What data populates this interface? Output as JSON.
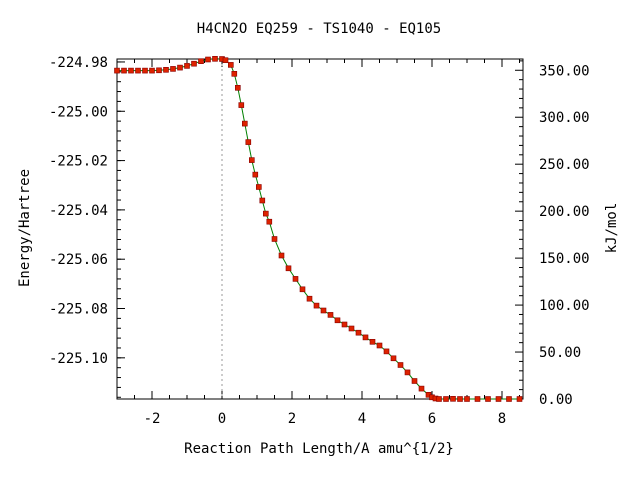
{
  "chart_data": {
    "type": "line",
    "title": "H4CN2O   EQ259 - TS1040 - EQ105",
    "xlabel": "Reaction Path Length/A amu^{1/2}",
    "ylabel_left": "Energy/Hartree",
    "ylabel_right": "kJ/mol",
    "xlim": [
      -3.0,
      8.6
    ],
    "ylim_left": [
      -225.1167,
      -224.9788
    ],
    "ylim_right": [
      0,
      362
    ],
    "x_ticks": [
      -2,
      0,
      2,
      4,
      6,
      8
    ],
    "x_tick_labels": [
      "-2",
      "0",
      "2",
      "4",
      "6",
      "8"
    ],
    "y_left_ticks": [
      -224.98,
      -225.0,
      -225.02,
      -225.04,
      -225.06,
      -225.08,
      -225.1
    ],
    "y_left_tick_labels": [
      "-224.98",
      "-225.00",
      "-225.02",
      "-225.04",
      "-225.06",
      "-225.08",
      "-225.10"
    ],
    "y_right_ticks": [
      0,
      50,
      100,
      150,
      200,
      250,
      300,
      350
    ],
    "y_right_tick_labels": [
      "0.00",
      "50.00",
      "100.00",
      "150.00",
      "200.00",
      "250.00",
      "300.00",
      "350.00"
    ],
    "ts_marker_x": 0.0,
    "grid": false,
    "line_color": "#008000",
    "point_color": "#dd2200",
    "guide_color": "#999999",
    "series": [
      {
        "x": [
          -3.0,
          -2.8,
          -2.6,
          -2.4,
          -2.2,
          -2.0,
          -1.8,
          -1.6,
          -1.4,
          -1.2,
          -1.0,
          -0.8,
          -0.6,
          -0.4,
          -0.2,
          0.0,
          0.1,
          0.25,
          0.35,
          0.45,
          0.55,
          0.65,
          0.75,
          0.85,
          0.95,
          1.05,
          1.15,
          1.25,
          1.35,
          1.5,
          1.7,
          1.9,
          2.1,
          2.3,
          2.5,
          2.7,
          2.9,
          3.1,
          3.3,
          3.5,
          3.7,
          3.9,
          4.1,
          4.3,
          4.5,
          4.7,
          4.9,
          5.1,
          5.3,
          5.5,
          5.7,
          5.9,
          6.0,
          6.1,
          6.2,
          6.4,
          6.6,
          6.8,
          7.0,
          7.3,
          7.6,
          7.9,
          8.2,
          8.5
        ],
        "y": [
          -224.9835,
          -224.9835,
          -224.9835,
          -224.9835,
          -224.9835,
          -224.9835,
          -224.9834,
          -224.9832,
          -224.9828,
          -224.9823,
          -224.9816,
          -224.9807,
          -224.9797,
          -224.979,
          -224.9787,
          -224.9788,
          -224.9793,
          -224.9812,
          -224.9848,
          -224.9905,
          -224.9975,
          -225.005,
          -225.0125,
          -225.0198,
          -225.0257,
          -225.0307,
          -225.0362,
          -225.0415,
          -225.0448,
          -225.0518,
          -225.0585,
          -225.0637,
          -225.068,
          -225.0722,
          -225.076,
          -225.0788,
          -225.0808,
          -225.0826,
          -225.0848,
          -225.0865,
          -225.0881,
          -225.0898,
          -225.0917,
          -225.0935,
          -225.095,
          -225.0974,
          -225.1002,
          -225.1029,
          -225.1059,
          -225.1094,
          -225.1125,
          -225.115,
          -225.116,
          -225.1165,
          -225.1167,
          -225.1167,
          -225.1166,
          -225.1167,
          -225.1167,
          -225.1167,
          -225.1167,
          -225.1167,
          -225.1167,
          -225.1167
        ]
      }
    ]
  }
}
